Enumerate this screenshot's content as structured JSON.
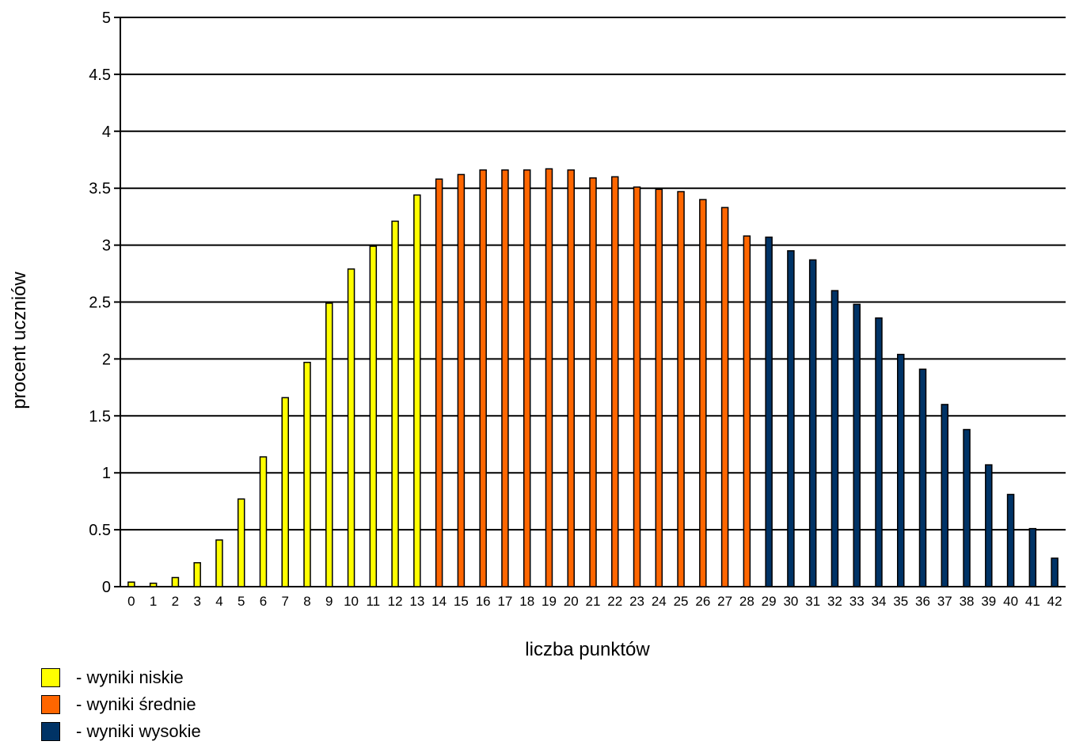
{
  "chart_data": {
    "type": "bar",
    "xlabel": "liczba punktów",
    "ylabel": "procent uczniów",
    "ylim": [
      0,
      5
    ],
    "yticks": [
      "0",
      "0.5",
      "1",
      "1.5",
      "2",
      "2.5",
      "3",
      "3.5",
      "4",
      "4.5",
      "5"
    ],
    "grid": true,
    "categories": [
      "0",
      "1",
      "2",
      "3",
      "4",
      "5",
      "6",
      "7",
      "8",
      "9",
      "10",
      "11",
      "12",
      "13",
      "14",
      "15",
      "16",
      "17",
      "18",
      "19",
      "20",
      "21",
      "22",
      "23",
      "24",
      "25",
      "26",
      "27",
      "28",
      "29",
      "30",
      "31",
      "32",
      "33",
      "34",
      "35",
      "36",
      "37",
      "38",
      "39",
      "40",
      "41",
      "42"
    ],
    "values": [
      0.04,
      0.03,
      0.08,
      0.21,
      0.41,
      0.77,
      1.14,
      1.66,
      1.97,
      2.49,
      2.79,
      2.99,
      3.21,
      3.44,
      3.58,
      3.62,
      3.66,
      3.66,
      3.66,
      3.67,
      3.66,
      3.59,
      3.6,
      3.51,
      3.49,
      3.47,
      3.4,
      3.33,
      3.08,
      3.07,
      2.95,
      2.87,
      2.6,
      2.48,
      2.36,
      2.04,
      1.91,
      1.6,
      1.38,
      1.07,
      0.81,
      0.51,
      0.25
    ],
    "groups": [
      {
        "label": "- wyniki niskie",
        "color": "#ffff00",
        "from": 0,
        "to": 13
      },
      {
        "label": "- wyniki średnie",
        "color": "#ff6600",
        "from": 14,
        "to": 28
      },
      {
        "label": "- wyniki wysokie",
        "color": "#003366",
        "from": 29,
        "to": 42
      }
    ],
    "legend_position": "bottom-left"
  }
}
